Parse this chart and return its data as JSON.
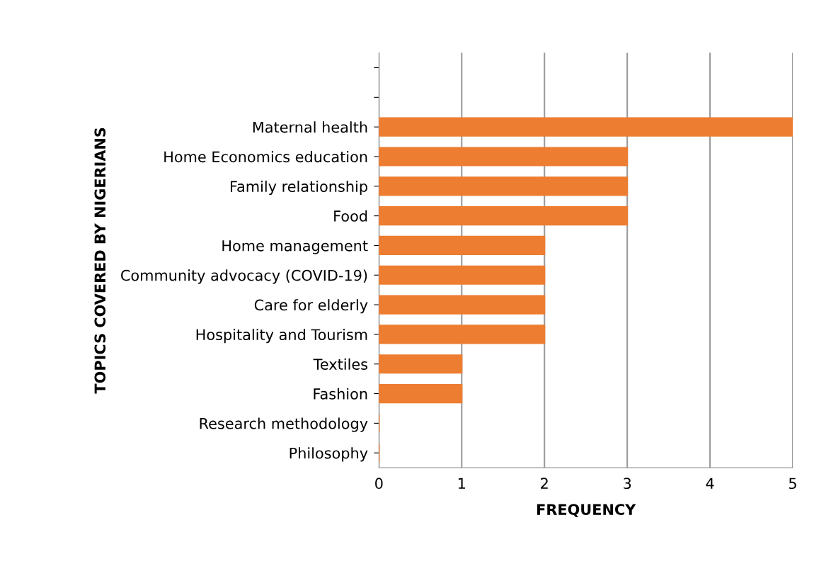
{
  "chart_data": {
    "type": "bar",
    "orientation": "horizontal",
    "xlabel": "FREQUENCY",
    "ylabel": "TOPICS COVERED BY NIGERIANS",
    "categories": [
      null,
      null,
      "Maternal health",
      "Home Economics education",
      "Family relationship",
      "Food",
      "Home management",
      "Community advocacy (COVID-19)",
      "Care for elderly",
      "Hospitality and Tourism",
      "Textiles",
      "Fashion",
      "Research methodology",
      "Philosophy"
    ],
    "values": [
      null,
      null,
      5,
      3,
      3,
      3,
      2,
      2,
      2,
      2,
      1,
      1,
      0,
      0
    ],
    "color": "#ed7d31",
    "xlim": [
      0,
      5
    ],
    "xticks": [
      0,
      1,
      2,
      3,
      4,
      5
    ],
    "grid": "x"
  }
}
